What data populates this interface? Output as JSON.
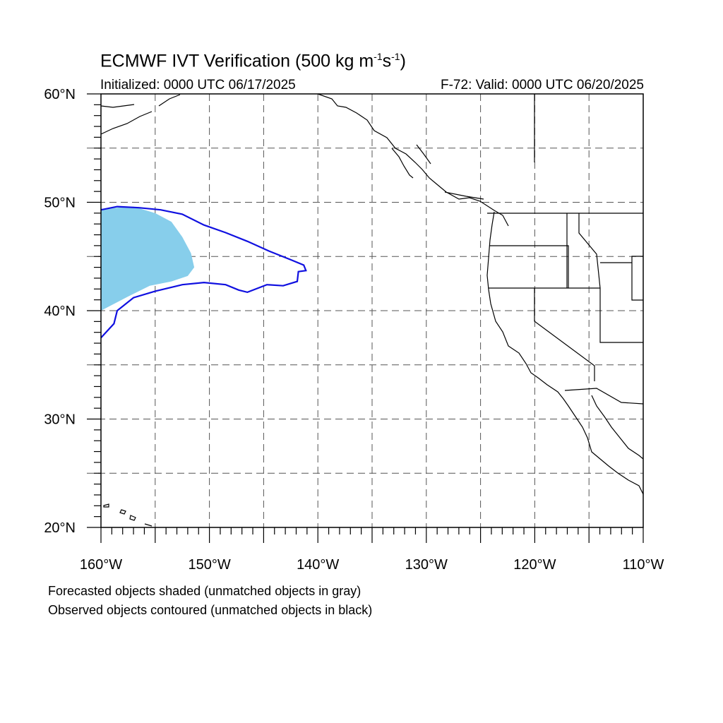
{
  "title": {
    "text": "ECMWF IVT Verification (500 kg m",
    "sup1": "-1",
    "mid": "s",
    "sup2": "-1",
    "end": ")"
  },
  "subtitle_left": "Initialized: 0000 UTC 06/17/2025",
  "subtitle_right": "F-72: Valid: 0000 UTC 06/20/2025",
  "captions": [
    "Forecasted objects shaded (unmatched objects in gray)",
    "Observed objects contoured (unmatched objects in black)"
  ],
  "map": {
    "lon_range": [
      -160,
      -110
    ],
    "lat_range": [
      20,
      60
    ],
    "lon_ticks": [
      {
        "value": -160,
        "label": "160°W"
      },
      {
        "value": -150,
        "label": "150°W"
      },
      {
        "value": -140,
        "label": "140°W"
      },
      {
        "value": -130,
        "label": "130°W"
      },
      {
        "value": -120,
        "label": "120°W"
      },
      {
        "value": -110,
        "label": "110°W"
      }
    ],
    "lat_ticks": [
      {
        "value": 20,
        "label": "20°N"
      },
      {
        "value": 30,
        "label": "30°N"
      },
      {
        "value": 40,
        "label": "40°N"
      },
      {
        "value": 50,
        "label": "50°N"
      },
      {
        "value": 60,
        "label": "60°N"
      }
    ],
    "grid_spacing_deg": 5,
    "grid_style": "dashed",
    "colors": {
      "forecast_fill": "#87ceeb",
      "observed_contour": "#1010e0",
      "coastline": "#000000",
      "grid": "#555555"
    },
    "forecast_object": [
      [
        -160,
        49.4
      ],
      [
        -157,
        49.6
      ],
      [
        -155,
        49.0
      ],
      [
        -153.5,
        48.2
      ],
      [
        -152.5,
        46.8
      ],
      [
        -151.7,
        45.3
      ],
      [
        -151.4,
        44.0
      ],
      [
        -152.0,
        43.2
      ],
      [
        -153.5,
        42.7
      ],
      [
        -155.5,
        42.3
      ],
      [
        -157.5,
        41.3
      ],
      [
        -160,
        40.0
      ]
    ],
    "observed_object": [
      [
        -160,
        49.3
      ],
      [
        -158.5,
        49.6
      ],
      [
        -156.5,
        49.5
      ],
      [
        -154.5,
        49.3
      ],
      [
        -152.5,
        48.9
      ],
      [
        -150.5,
        47.9
      ],
      [
        -148.5,
        47.2
      ],
      [
        -146.5,
        46.4
      ],
      [
        -144.5,
        45.5
      ],
      [
        -142.5,
        44.7
      ],
      [
        -141.3,
        44.2
      ],
      [
        -141.1,
        43.7
      ],
      [
        -141.8,
        43.6
      ],
      [
        -141.9,
        42.7
      ],
      [
        -143.2,
        42.3
      ],
      [
        -144.7,
        42.4
      ],
      [
        -146.5,
        41.7
      ],
      [
        -147.3,
        41.9
      ],
      [
        -148.5,
        42.4
      ],
      [
        -150.5,
        42.6
      ],
      [
        -152.5,
        42.4
      ],
      [
        -155,
        41.8
      ],
      [
        -157,
        41.2
      ],
      [
        -158.5,
        40.0
      ],
      [
        -158.8,
        38.8
      ],
      [
        -160,
        37.5
      ]
    ]
  }
}
